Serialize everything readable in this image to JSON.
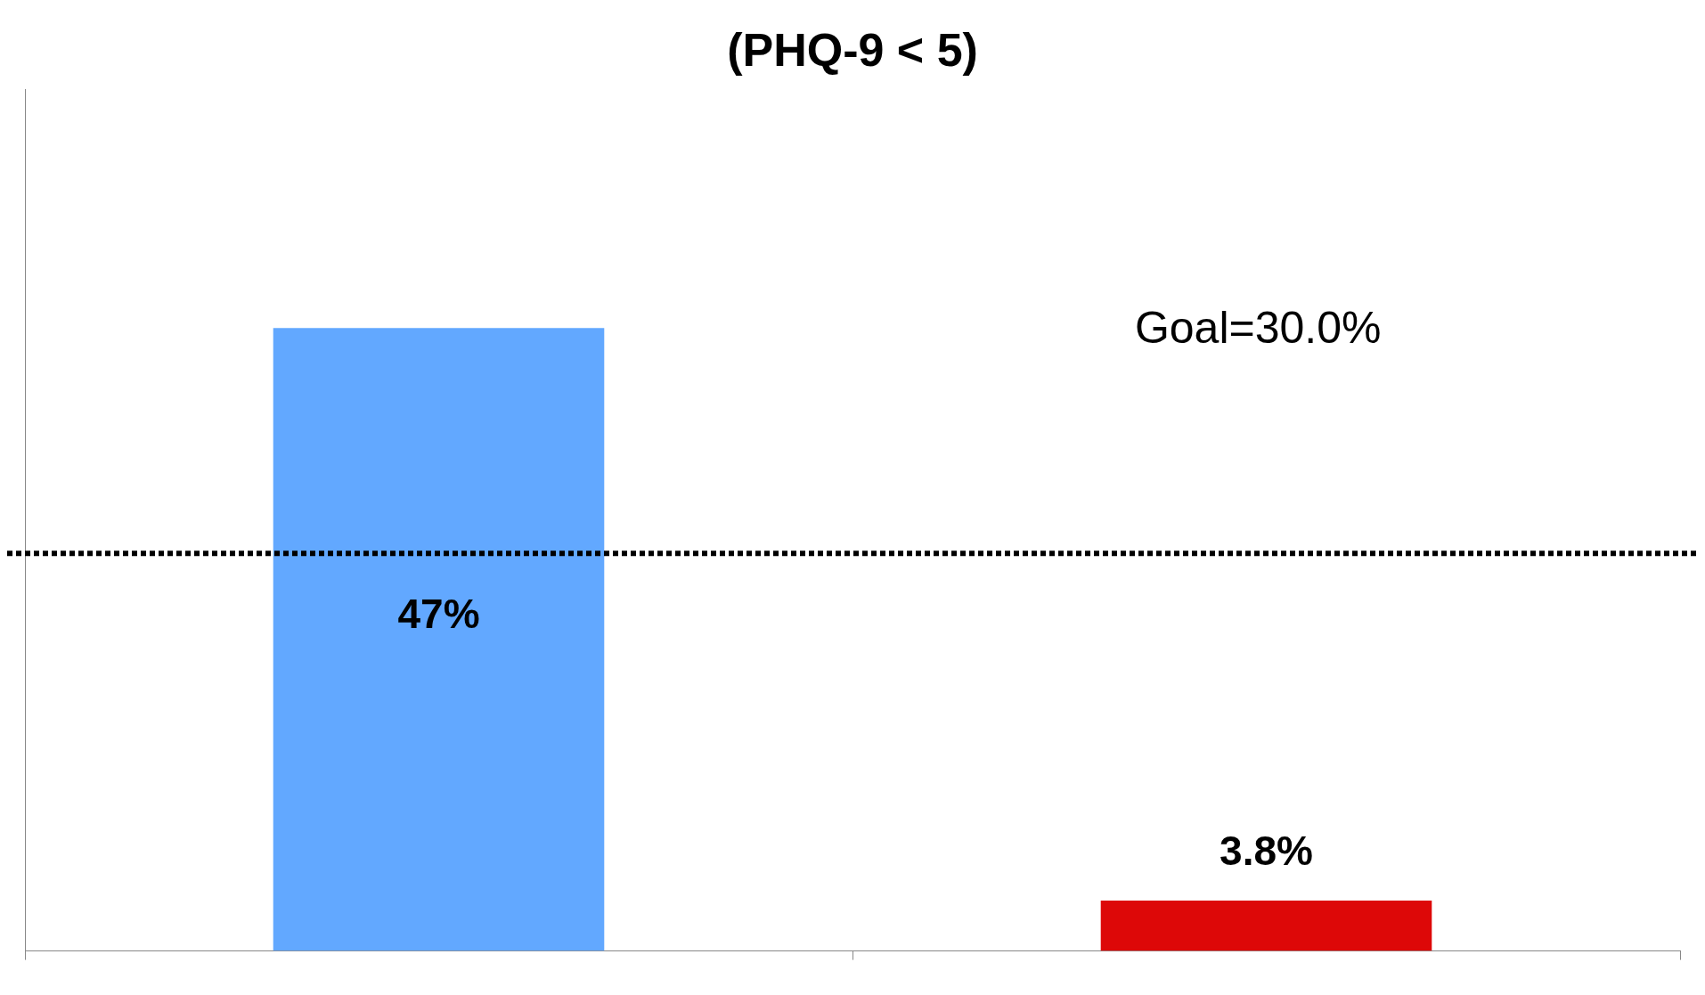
{
  "chart_data": {
    "type": "bar",
    "title": "(PHQ-9 < 5)",
    "categories": [
      null,
      null
    ],
    "values": [
      47,
      3.8
    ],
    "colors": [
      "#62a8ff",
      "#dd0808"
    ],
    "value_labels": [
      "47%",
      "3.8%"
    ],
    "ylim": [
      0,
      65
    ],
    "grid": false,
    "legend": false,
    "ref_lines": [
      {
        "axis": "y",
        "value": 30,
        "label": "Goal=30.0%",
        "color": "#000000",
        "line_style": "dashed"
      }
    ]
  }
}
